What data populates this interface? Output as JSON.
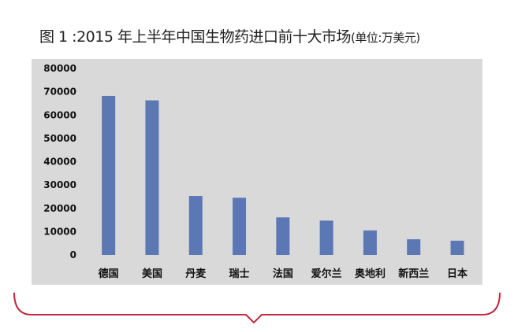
{
  "chart_data": {
    "type": "bar",
    "title": "图 1 :2015 年上半年中国生物药进口前十大市场",
    "unit_label": "(单位:万美元)",
    "categories": [
      "德国",
      "美国",
      "丹麦",
      "瑞士",
      "法国",
      "爱尔兰",
      "奥地利",
      "新西兰",
      "日本"
    ],
    "values": [
      68200,
      66300,
      25300,
      24500,
      16100,
      14700,
      10500,
      6700,
      6100
    ],
    "ylim": [
      0,
      80000
    ],
    "yticks": [
      0,
      10000,
      20000,
      30000,
      40000,
      50000,
      60000,
      70000,
      80000
    ],
    "xlabel": "",
    "ylabel": "",
    "grid": false,
    "legend": "none",
    "bar_color": "#5b78b4",
    "plot_background": "#d9d9d9",
    "frame_color": "#c0273a"
  }
}
